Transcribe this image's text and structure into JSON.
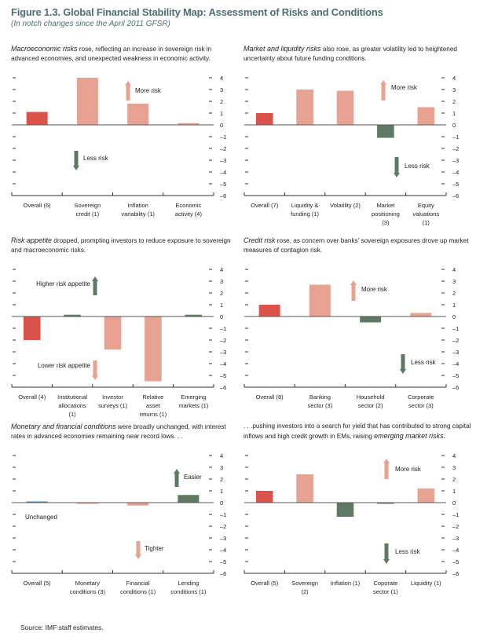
{
  "header": {
    "title": "Figure 1.3.  Global Financial Stability Map: Assessment of Risks and Conditions",
    "subtitle": "(In notch changes since the April 2011 GFSR)"
  },
  "source": "Source: IMF staff estimates.",
  "colors": {
    "overall": "#d9534a",
    "light": "#e8a292",
    "green": "#5e7a64",
    "blue": "#3a8fc8",
    "axis": "#444444"
  },
  "chart_data": [
    {
      "type": "bar",
      "caption_italic": "Macroeconomic risks",
      "caption_rest": " rose, reflecting an increase in sovereign risk in advanced economies, and unexpected weakness in economic activity.",
      "ylim": [
        -6,
        4
      ],
      "yticks": [
        "4",
        "3",
        "2",
        "1",
        "0",
        "–1",
        "–2",
        "–3",
        "–4",
        "–5",
        "–6"
      ],
      "categories": [
        [
          "Overall (6)"
        ],
        [
          "Sovereign",
          "credit (1)"
        ],
        [
          "Inflation",
          "variability (1)"
        ],
        [
          "Economic",
          "activity (4)"
        ]
      ],
      "values": [
        1.1,
        4.0,
        1.8,
        0.15
      ],
      "bar_colors": [
        "#d9534a",
        "#e8a292",
        "#e8a292",
        "#e8a292"
      ],
      "annotations": [
        {
          "text": "More risk",
          "direction": "up",
          "color": "#e8a292"
        },
        {
          "text": "Less risk",
          "direction": "down",
          "color": "#5e7a64"
        }
      ]
    },
    {
      "type": "bar",
      "caption_italic": "Market and liquidity risks",
      "caption_rest": " also rose, as greater volatility led to heightened uncertainty about future funding conditions.",
      "ylim": [
        -6,
        4
      ],
      "yticks": [
        "4",
        "3",
        "2",
        "1",
        "0",
        "–1",
        "–2",
        "–3",
        "–4",
        "–5",
        "–6"
      ],
      "categories": [
        [
          "Overall (7)"
        ],
        [
          "Liquidity &",
          "funding (1)"
        ],
        [
          "Volatility (2)"
        ],
        [
          "Market",
          "positioning",
          "(3)"
        ],
        [
          "Equity",
          "valuations",
          "(1)"
        ]
      ],
      "values": [
        1.0,
        3.0,
        2.9,
        -1.1,
        1.5
      ],
      "bar_colors": [
        "#d9534a",
        "#e8a292",
        "#e8a292",
        "#5e7a64",
        "#e8a292"
      ],
      "annotations": [
        {
          "text": "More risk",
          "direction": "up",
          "color": "#e8a292"
        },
        {
          "text": "Less risk",
          "direction": "down",
          "color": "#5e7a64"
        }
      ]
    },
    {
      "type": "bar",
      "caption_italic": "Risk appetite",
      "caption_rest": " dropped, prompting investors to reduce exposure to sovereign and macroeconomic risks.",
      "ylim": [
        -6,
        4
      ],
      "yticks": [
        "4",
        "3",
        "2",
        "1",
        "0",
        "–1",
        "–2",
        "–3",
        "–4",
        "–5",
        "–6"
      ],
      "categories": [
        [
          "Overall (4)"
        ],
        [
          "Institutional",
          "allocations",
          "(1)"
        ],
        [
          "Investor",
          "surveys (1)"
        ],
        [
          "Relative",
          "asset",
          "returns (1)"
        ],
        [
          "Emerging",
          "markets (1)"
        ]
      ],
      "values": [
        -2.0,
        0.15,
        -2.8,
        -5.5,
        0.15
      ],
      "bar_colors": [
        "#d9534a",
        "#5e7a64",
        "#e8a292",
        "#e8a292",
        "#5e7a64"
      ],
      "annotations": [
        {
          "text": "Higher risk appetite",
          "direction": "up",
          "color": "#5e7a64"
        },
        {
          "text": "Lower risk appetite",
          "direction": "down",
          "color": "#e8a292"
        }
      ]
    },
    {
      "type": "bar",
      "caption_italic": "Credit risk",
      "caption_rest": " rose, as concern over banks' sovereign exposures drove up market measures of contagion risk.",
      "ylim": [
        -6,
        4
      ],
      "yticks": [
        "4",
        "3",
        "2",
        "1",
        "0",
        "–1",
        "–2",
        "–3",
        "–4",
        "–5",
        "–6"
      ],
      "categories": [
        [
          "Overall (8)"
        ],
        [
          "Banking",
          "sector (3)"
        ],
        [
          "Household",
          "sector (2)"
        ],
        [
          "Corporate",
          "sector (3)"
        ]
      ],
      "values": [
        1.0,
        2.7,
        -0.5,
        0.3
      ],
      "bar_colors": [
        "#d9534a",
        "#e8a292",
        "#5e7a64",
        "#e8a292"
      ],
      "annotations": [
        {
          "text": "More risk",
          "direction": "up",
          "color": "#e8a292"
        },
        {
          "text": "Less risk",
          "direction": "down",
          "color": "#5e7a64"
        }
      ]
    },
    {
      "type": "bar",
      "caption_italic": "Monetary and financial conditions",
      "caption_rest": " were broadly unchanged, with interest rates in advanced economies remaining near record lows. . .",
      "ylim": [
        -6,
        4
      ],
      "yticks": [
        "4",
        "3",
        "2",
        "1",
        "0",
        "–1",
        "–2",
        "–3",
        "–4",
        "–5",
        "–6"
      ],
      "categories": [
        [
          "Overall (5)"
        ],
        [
          "Monetary",
          "conditions (3)"
        ],
        [
          "Financial",
          "conditions (1)"
        ],
        [
          "Lending",
          "conditions (1)"
        ]
      ],
      "values": [
        0.1,
        -0.1,
        -0.25,
        0.65
      ],
      "bar_colors": [
        "#3a8fc8",
        "#e8a292",
        "#e8a292",
        "#5e7a64"
      ],
      "annotations": [
        {
          "text": "Easier",
          "direction": "up",
          "color": "#5e7a64"
        },
        {
          "text": "Tighter",
          "direction": "down",
          "color": "#e8a292"
        },
        {
          "text": "Unchanged",
          "direction": "none",
          "color": ""
        }
      ]
    },
    {
      "type": "bar",
      "caption_pre": ". . .pushing investors into a search for yield that has contributed to strong capital inflows and high credit growth in EMs, raising ",
      "caption_italic": "emerging market risks.",
      "caption_rest": "",
      "ylim": [
        -6,
        4
      ],
      "yticks": [
        "4",
        "3",
        "2",
        "1",
        "0",
        "–1",
        "–2",
        "–3",
        "–4",
        "–5",
        "–6"
      ],
      "categories": [
        [
          "Overall (5)"
        ],
        [
          "Sovereign",
          "(2)"
        ],
        [
          "Inflation (1)"
        ],
        [
          "Coporate",
          "sector (1)"
        ],
        [
          "Liquidity (1)"
        ]
      ],
      "values": [
        1.0,
        2.4,
        -1.2,
        -0.05,
        1.2
      ],
      "bar_colors": [
        "#d9534a",
        "#e8a292",
        "#5e7a64",
        "#5e7a64",
        "#e8a292"
      ],
      "annotations": [
        {
          "text": "More risk",
          "direction": "up",
          "color": "#e8a292"
        },
        {
          "text": "Less risk",
          "direction": "down",
          "color": "#5e7a64"
        }
      ]
    }
  ]
}
